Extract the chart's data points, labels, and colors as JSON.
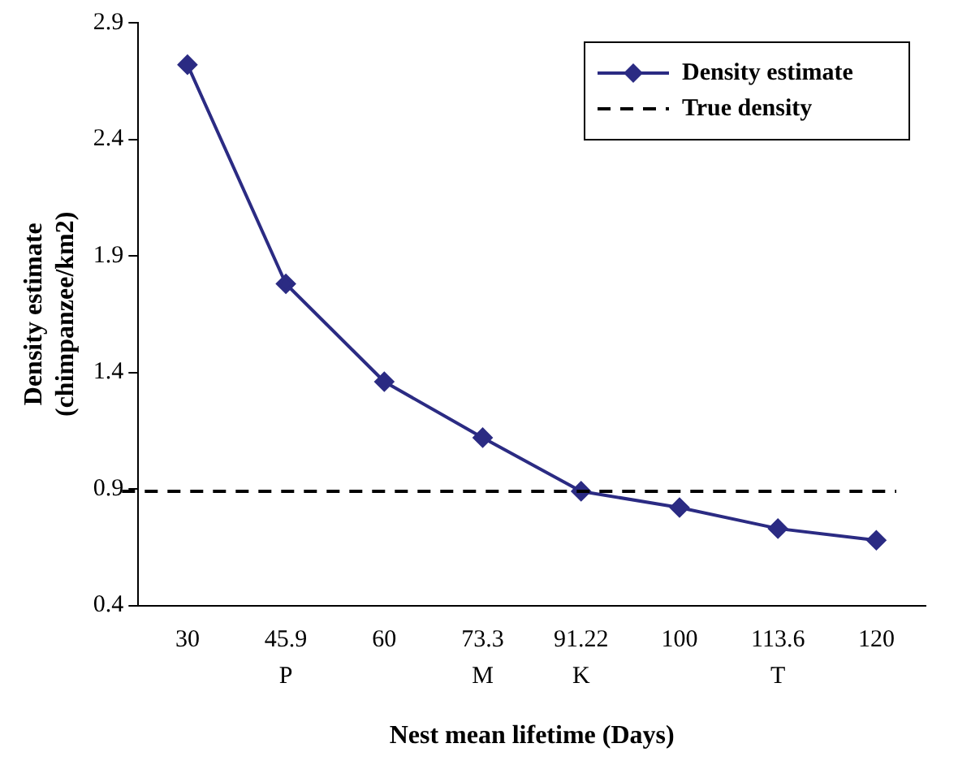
{
  "chart_data": {
    "type": "line",
    "xlabel": "Nest mean lifetime (Days)",
    "ylabel": "Density estimate\n(chimpanzee/km2)",
    "categories": [
      "30",
      "45.9\nP",
      "60",
      "73.3\nM",
      "91.22\nK",
      "100",
      "113.6\nT",
      "120"
    ],
    "series": [
      {
        "name": "Density estimate",
        "color": "#2b2b83",
        "values": [
          2.72,
          1.78,
          1.36,
          1.12,
          0.89,
          0.82,
          0.73,
          0.68
        ]
      }
    ],
    "ref_lines": [
      {
        "axis": "y",
        "value": 0.89,
        "label": "True density",
        "color": "#000000",
        "line_style": "dashed"
      }
    ],
    "ylim": [
      0.4,
      2.9
    ],
    "yticks": [
      0.4,
      0.9,
      1.4,
      1.9,
      2.4,
      2.9
    ],
    "grid": false,
    "legend": "top right",
    "marker": "diamond",
    "line_style": "solid"
  }
}
